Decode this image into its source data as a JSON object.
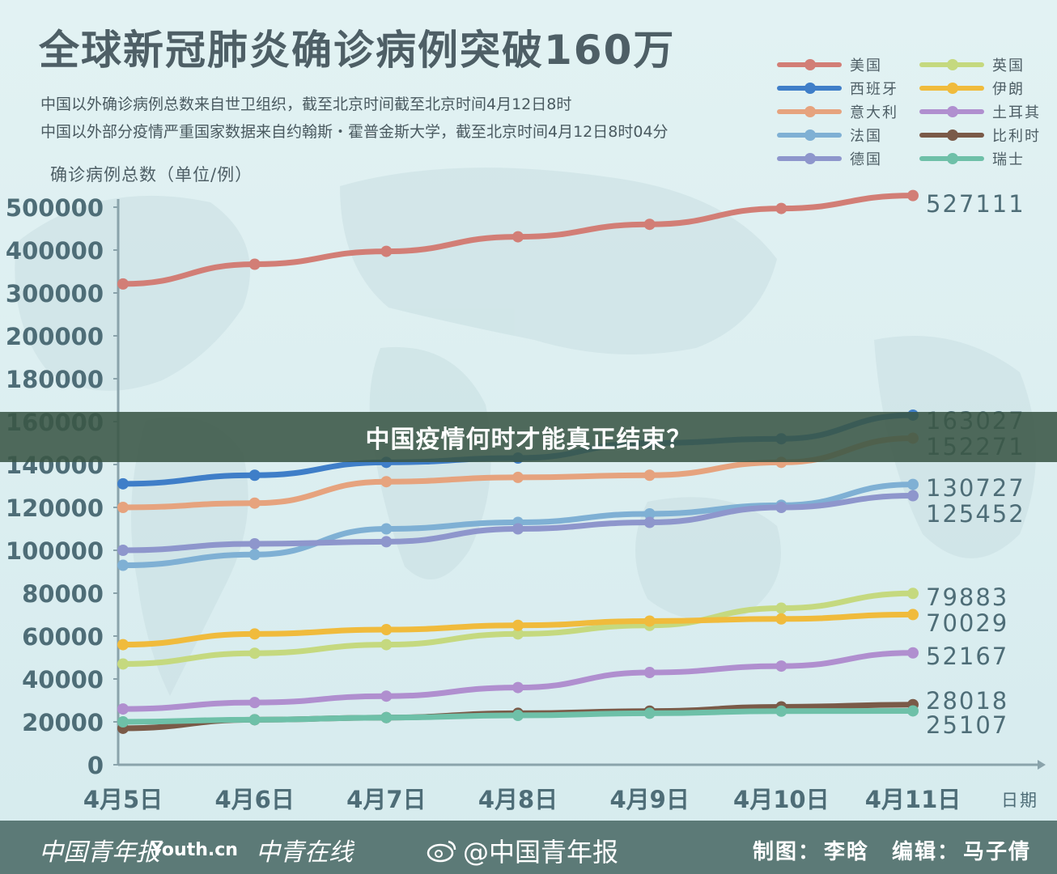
{
  "title": "全球新冠肺炎确诊病例突破160万",
  "subtitles": [
    "中国以外确诊病例总数来自世卫组织，截至北京时间截至北京时间4月12日8时",
    "中国以外部分疫情严重国家数据来自约翰斯・霍普金斯大学，截至北京时间4月12日8时04分"
  ],
  "banner": "中国疫情何时才能真正结束？",
  "footer": {
    "logo1": "中国青年报",
    "logo2": "Youth.cn",
    "logo3": "中青在线",
    "weibo": "@中国青年报",
    "credit_chart_label": "制图：",
    "credit_chart_name": "李晗",
    "credit_editor_label": "编辑：",
    "credit_editor_name": "马子倩"
  },
  "colors": {
    "background": "#dbeef0",
    "axis": "#8aa3ab",
    "tick_text": "#4e6d77",
    "banner": "#3a5646",
    "footer": "#5c7a77"
  },
  "chart_data": {
    "type": "line",
    "ylabel": "确诊病例总数（单位/例）",
    "xlabel": "日期",
    "y_scale": "piecewise (non-linear: 20000-unit steps to 200000, then 100000-unit steps)",
    "yticks": [
      0,
      20000,
      40000,
      60000,
      80000,
      100000,
      120000,
      140000,
      160000,
      180000,
      200000,
      300000,
      400000,
      500000
    ],
    "x": [
      "4月5日",
      "4月6日",
      "4月7日",
      "4月8日",
      "4月9日",
      "4月10日",
      "4月11日"
    ],
    "legend_position": "top-right",
    "series": [
      {
        "name": "美国",
        "color": "#d27e76",
        "values": [
          321000,
          367000,
          397000,
          431000,
          460000,
          497000,
          527111
        ],
        "end_label": "527111"
      },
      {
        "name": "西班牙",
        "color": "#3f7ec8",
        "values": [
          131000,
          135000,
          141000,
          143000,
          150000,
          152000,
          163027
        ],
        "end_label": "163027"
      },
      {
        "name": "意大利",
        "color": "#e6a37e",
        "values": [
          120000,
          122000,
          132000,
          134000,
          135000,
          141000,
          152271
        ],
        "end_label": "152271"
      },
      {
        "name": "法国",
        "color": "#7fb0d4",
        "values": [
          93000,
          98000,
          110000,
          113000,
          117000,
          121000,
          130727
        ],
        "end_label": "130727"
      },
      {
        "name": "德国",
        "color": "#8e96cc",
        "values": [
          100000,
          103000,
          104000,
          110000,
          113000,
          120000,
          125452
        ],
        "end_label": "125452"
      },
      {
        "name": "英国",
        "color": "#c5d97f",
        "values": [
          47000,
          52000,
          56000,
          61000,
          65000,
          73000,
          79883
        ],
        "end_label": "79883"
      },
      {
        "name": "伊朗",
        "color": "#f0bb3c",
        "values": [
          56000,
          61000,
          63000,
          65000,
          67000,
          68000,
          70029
        ],
        "end_label": "70029"
      },
      {
        "name": "土耳其",
        "color": "#b08fcf",
        "values": [
          26000,
          29000,
          32000,
          36000,
          43000,
          46000,
          52167
        ],
        "end_label": "52167"
      },
      {
        "name": "比利时",
        "color": "#7a5a48",
        "values": [
          17000,
          21000,
          22000,
          24000,
          25000,
          27000,
          28018
        ],
        "end_label": "28018"
      },
      {
        "name": "瑞士",
        "color": "#6ec0a8",
        "values": [
          20000,
          21000,
          22000,
          23000,
          24000,
          25000,
          25107
        ],
        "end_label": "25107"
      }
    ]
  }
}
